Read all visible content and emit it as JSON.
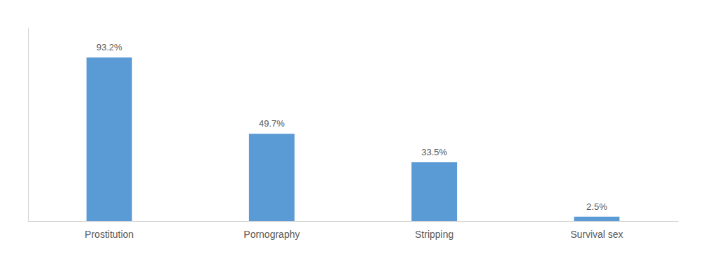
{
  "chart_data": {
    "type": "bar",
    "categories": [
      "Prostitution",
      "Pornography",
      "Stripping",
      "Survival sex"
    ],
    "values": [
      93.2,
      49.7,
      33.5,
      2.5
    ],
    "value_labels": [
      "93.2%",
      "49.7%",
      "33.5%",
      "2.5%"
    ],
    "color": "#5b9bd5",
    "ylim": [
      0,
      110
    ],
    "data_labels": true,
    "grid": false,
    "tick_labels": "x"
  }
}
